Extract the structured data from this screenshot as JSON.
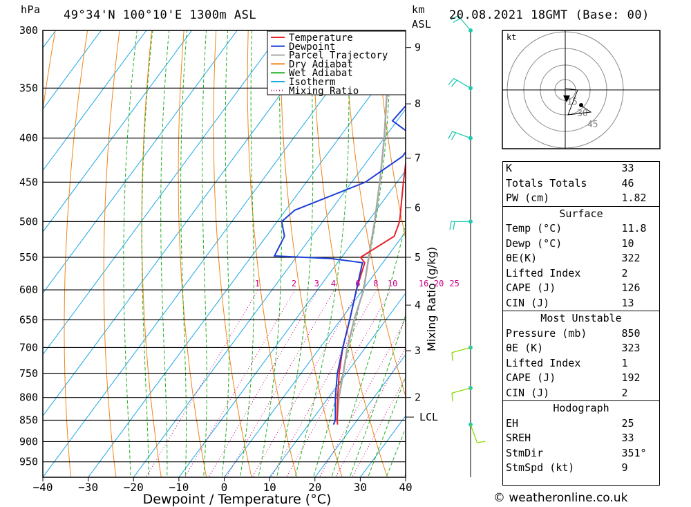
{
  "header": {
    "location": "49°34'N  100°10'E  1300m  ASL",
    "date": "20.08.2021  18GMT  (Base: 00)",
    "left_unit": "hPa",
    "km_unit": "km",
    "asl_unit": "ASL"
  },
  "chart_data": {
    "type": "line",
    "xlabel": "Dewpoint / Temperature (°C)",
    "ylabel": "hPa",
    "mixing_ratio_axis_label": "Mixing Ratio (g/kg)",
    "xlim": [
      -40,
      40
    ],
    "ylim": [
      990,
      300
    ],
    "pressure_ticks": [
      300,
      350,
      400,
      450,
      500,
      550,
      600,
      650,
      700,
      750,
      800,
      850,
      900,
      950
    ],
    "temperature_ticks": [
      -40,
      -30,
      -20,
      -10,
      0,
      10,
      20,
      30,
      40
    ],
    "height_ticks": [
      {
        "km": 2,
        "p": 800
      },
      {
        "km": 3,
        "p": 706
      },
      {
        "km": 4,
        "p": 625
      },
      {
        "km": 5,
        "p": 550
      },
      {
        "km": 6,
        "p": 482
      },
      {
        "km": 7,
        "p": 422
      },
      {
        "km": 8,
        "p": 365
      },
      {
        "km": 9,
        "p": 314
      }
    ],
    "lcl": {
      "label": "LCL",
      "p": 843
    },
    "mixing_ratio_labels": [
      "1",
      "2",
      "3",
      "4",
      "6",
      "8",
      "10",
      "16",
      "20",
      "25"
    ],
    "legend": [
      "Temperature",
      "Dewpoint",
      "Parcel Trajectory",
      "Dry Adiabat",
      "Wet Adiabat",
      "Isotherm",
      "Mixing Ratio"
    ],
    "legend_position": "top-right",
    "colors": {
      "temperature": "#e8202a",
      "dewpoint": "#1f3fd8",
      "parcel": "#a8a8a8",
      "dry_adiabat": "#f08418",
      "wet_adiabat": "#22b022",
      "isotherm": "#1aa6e8",
      "mixing_ratio": "#d0008a",
      "wind": "#8ad800"
    },
    "series": [
      {
        "name": "Temperature",
        "points": [
          [
            860,
            16.4
          ],
          [
            850,
            15.6
          ],
          [
            800,
            12.0
          ],
          [
            750,
            8.4
          ],
          [
            700,
            5.0
          ],
          [
            650,
            2.0
          ],
          [
            600,
            -1.4
          ],
          [
            558,
            -4.0
          ],
          [
            550,
            -5.8
          ],
          [
            520,
            -1.8
          ],
          [
            500,
            -3.0
          ],
          [
            450,
            -8.6
          ],
          [
            400,
            -14.6
          ],
          [
            380,
            -16.8
          ],
          [
            350,
            -22.2
          ],
          [
            300,
            -30.0
          ]
        ]
      },
      {
        "name": "Dewpoint",
        "points": [
          [
            860,
            15.5
          ],
          [
            850,
            15.2
          ],
          [
            800,
            11.5
          ],
          [
            750,
            8.0
          ],
          [
            700,
            5.0
          ],
          [
            650,
            2.0
          ],
          [
            600,
            -1.4
          ],
          [
            558,
            -4.5
          ],
          [
            552,
            -12.0
          ],
          [
            548,
            -25.0
          ],
          [
            520,
            -26.0
          ],
          [
            500,
            -29.0
          ],
          [
            485,
            -28.0
          ],
          [
            450,
            -17.0
          ],
          [
            420,
            -13.0
          ],
          [
            400,
            -13.0
          ],
          [
            382,
            -21.0
          ],
          [
            350,
            -20.0
          ],
          [
            320,
            -19.0
          ],
          [
            300,
            -25.0
          ]
        ]
      },
      {
        "name": "Parcel Trajectory",
        "points": [
          [
            850,
            15.6
          ],
          [
            800,
            12.3
          ],
          [
            750,
            9.3
          ],
          [
            700,
            6.0
          ],
          [
            650,
            3.0
          ],
          [
            600,
            0.2
          ],
          [
            550,
            -4.0
          ],
          [
            500,
            -8.5
          ],
          [
            450,
            -13.8
          ],
          [
            400,
            -20.0
          ],
          [
            350,
            -27.5
          ],
          [
            300,
            -36.0
          ]
        ]
      }
    ],
    "wind": [
      {
        "p": 300,
        "dir": 320,
        "kt": 20
      },
      {
        "p": 350,
        "dir": 300,
        "kt": 20
      },
      {
        "p": 400,
        "dir": 290,
        "kt": 15
      },
      {
        "p": 500,
        "dir": 270,
        "kt": 15
      },
      {
        "p": 700,
        "dir": 255,
        "kt": 10
      },
      {
        "p": 780,
        "dir": 255,
        "kt": 10
      },
      {
        "p": 860,
        "dir": 160,
        "kt": 5
      }
    ],
    "hodograph": {
      "unit": "kt",
      "rings": [
        "15",
        "30",
        "45"
      ]
    }
  },
  "indices": {
    "k": {
      "label": "K",
      "value": "33"
    },
    "totals": {
      "label": "Totals Totals",
      "value": "46"
    },
    "pw": {
      "label": "PW (cm)",
      "value": "1.82"
    },
    "surface": {
      "title": "Surface",
      "temp": {
        "label": "Temp (°C)",
        "value": "11.8"
      },
      "dewp": {
        "label": "Dewp (°C)",
        "value": "10"
      },
      "theta": {
        "label": "θE(K)",
        "value": "322"
      },
      "li": {
        "label": "Lifted Index",
        "value": "2"
      },
      "cape": {
        "label": "CAPE (J)",
        "value": "126"
      },
      "cin": {
        "label": "CIN (J)",
        "value": "13"
      }
    },
    "most_unstable": {
      "title": "Most Unstable",
      "pressure": {
        "label": "Pressure (mb)",
        "value": "850"
      },
      "theta": {
        "label": "θE (K)",
        "value": "323"
      },
      "li": {
        "label": "Lifted Index",
        "value": "1"
      },
      "cape": {
        "label": "CAPE (J)",
        "value": "192"
      },
      "cin": {
        "label": "CIN (J)",
        "value": "2"
      }
    },
    "hodograph": {
      "title": "Hodograph",
      "eh": {
        "label": "EH",
        "value": "25"
      },
      "sreh": {
        "label": "SREH",
        "value": "33"
      },
      "stmdir": {
        "label": "StmDir",
        "value": "351°"
      },
      "stmspd": {
        "label": "StmSpd (kt)",
        "value": "9"
      }
    }
  },
  "credit": "© weatheronline.co.uk"
}
